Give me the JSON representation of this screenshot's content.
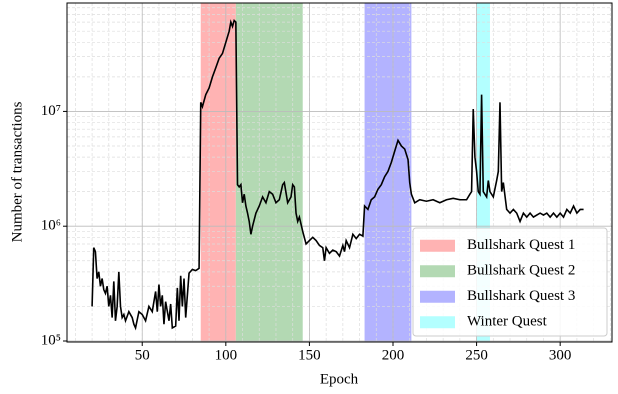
{
  "chart_data": {
    "type": "line",
    "xlabel": "Epoch",
    "ylabel": "Number of transactions",
    "color": "#000000",
    "log_y": true,
    "grid": true,
    "legend": "lower right",
    "xlim": [
      5,
      331
    ],
    "xticks": [
      50,
      100,
      150,
      200,
      250,
      300
    ],
    "ylim": [
      98000,
      88000000
    ],
    "yticks": [
      {
        "value": 100000,
        "label": "10⁵"
      },
      {
        "value": 1000000,
        "label": "10⁶"
      },
      {
        "value": 10000000,
        "label": "10⁷"
      }
    ],
    "spans": [
      {
        "name": "Bullshark Quest 1",
        "color": "#ffb3b3",
        "range": [
          85,
          106
        ]
      },
      {
        "name": "Bullshark Quest 2",
        "color": "#b3d9b3",
        "range": [
          106,
          146
        ]
      },
      {
        "name": "Bullshark Quest 3",
        "color": "#b3b3ff",
        "range": [
          183,
          211
        ]
      },
      {
        "name": "Winter Quest",
        "color": "#b3ffff",
        "range": [
          250,
          258
        ]
      }
    ],
    "x": [
      20,
      21,
      22,
      23,
      24,
      25,
      26,
      27,
      28,
      29,
      30,
      31,
      32,
      33,
      34,
      35,
      36,
      37,
      38,
      39,
      40,
      42,
      44,
      45,
      46,
      48,
      50,
      52,
      54,
      56,
      58,
      59,
      60,
      61,
      62,
      63,
      64,
      66,
      67,
      68,
      70,
      71,
      72,
      73,
      74,
      75,
      76,
      77,
      78,
      80,
      82,
      84,
      85,
      86,
      88,
      90,
      92,
      94,
      96,
      98,
      100,
      102,
      103,
      104,
      105,
      106,
      107,
      108,
      109,
      110,
      111,
      112,
      113,
      114,
      115,
      116,
      118,
      120,
      122,
      124,
      126,
      128,
      130,
      132,
      134,
      135,
      137,
      139,
      140,
      141,
      142,
      143,
      144,
      146,
      148,
      150,
      152,
      154,
      156,
      158,
      159,
      160,
      162,
      164,
      166,
      168,
      170,
      171,
      172,
      174,
      176,
      178,
      180,
      182,
      183,
      185,
      187,
      189,
      191,
      193,
      195,
      197,
      199,
      201,
      203,
      205,
      207,
      209,
      210,
      211,
      213,
      216,
      220,
      224,
      228,
      232,
      236,
      240,
      244,
      246,
      247,
      248,
      249,
      250,
      251,
      252,
      253,
      254,
      256,
      257,
      258,
      260,
      262,
      263,
      264,
      265,
      266,
      268,
      270,
      272,
      274,
      276,
      278,
      280,
      282,
      284,
      286,
      288,
      290,
      292,
      294,
      296,
      298,
      300,
      302,
      304,
      306,
      308,
      310,
      312,
      314
    ],
    "values": [
      200000,
      650000,
      600000,
      350000,
      400000,
      300000,
      350000,
      280000,
      260000,
      300000,
      200000,
      250000,
      160000,
      330000,
      150000,
      200000,
      400000,
      200000,
      160000,
      170000,
      150000,
      180000,
      160000,
      140000,
      130000,
      180000,
      170000,
      150000,
      200000,
      180000,
      270000,
      180000,
      310000,
      200000,
      250000,
      140000,
      220000,
      150000,
      210000,
      130000,
      135000,
      290000,
      150000,
      370000,
      200000,
      350000,
      160000,
      250000,
      390000,
      420000,
      410000,
      430000,
      12000000,
      11000000,
      14000000,
      16000000,
      20000000,
      24000000,
      29000000,
      32000000,
      40000000,
      50000000,
      60000000,
      55000000,
      62000000,
      60000000,
      2300000,
      2200000,
      2300000,
      1600000,
      1900000,
      1500000,
      1300000,
      1100000,
      850000,
      1000000,
      1300000,
      1500000,
      1800000,
      1600000,
      2000000,
      1900000,
      1600000,
      1700000,
      2300000,
      2400000,
      1600000,
      1800000,
      2300000,
      2200000,
      1300000,
      1100000,
      1200000,
      900000,
      700000,
      750000,
      800000,
      750000,
      680000,
      650000,
      500000,
      650000,
      580000,
      620000,
      600000,
      550000,
      680000,
      600000,
      750000,
      650000,
      850000,
      780000,
      850000,
      820000,
      1500000,
      1400000,
      1700000,
      1800000,
      2100000,
      2300000,
      2700000,
      3000000,
      3600000,
      4500000,
      5600000,
      5000000,
      4700000,
      3800000,
      2400000,
      1900000,
      1600000,
      1700000,
      1650000,
      1700000,
      1600000,
      1700000,
      1750000,
      1700000,
      1700000,
      1900000,
      2000000,
      10500000,
      4000000,
      3000000,
      2000000,
      1900000,
      14000000,
      2000000,
      1800000,
      2500000,
      2000000,
      1800000,
      2500000,
      3000000,
      12000000,
      2000000,
      2400000,
      1400000,
      1300000,
      1400000,
      1300000,
      1100000,
      1300000,
      1200000,
      1300000,
      1200000,
      1250000,
      1300000,
      1250000,
      1300000,
      1200000,
      1300000,
      1200000,
      1300000,
      1200000,
      1400000,
      1300000,
      1500000,
      1300000,
      1400000,
      1400000
    ]
  }
}
